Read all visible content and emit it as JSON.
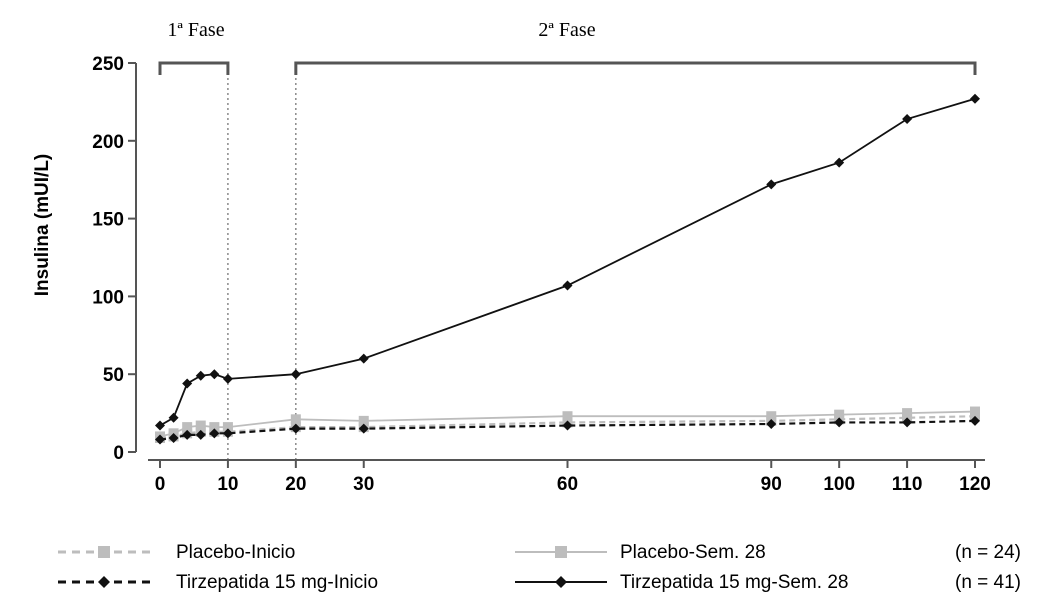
{
  "chart_data": {
    "type": "line",
    "xlabel": "",
    "ylabel": "Insulina (mUI/L)",
    "xlim": [
      0,
      120
    ],
    "ylim": [
      0,
      250
    ],
    "x_ticks": [
      0,
      10,
      20,
      30,
      60,
      90,
      100,
      110,
      120
    ],
    "y_ticks": [
      0,
      50,
      100,
      150,
      200,
      250
    ],
    "phases": [
      {
        "label": "1ª Fase",
        "x_start": 0,
        "x_end": 10
      },
      {
        "label": "2ª Fase",
        "x_start": 20,
        "x_end": 120
      }
    ],
    "series": [
      {
        "name": "Placebo-Inicio",
        "color": "#bdbdbd",
        "line_style": "dashed",
        "marker": "square",
        "x": [
          0,
          2,
          4,
          6,
          8,
          10,
          20,
          30,
          60,
          90,
          100,
          110,
          120
        ],
        "y": [
          9,
          10,
          12,
          13,
          13,
          13,
          16,
          16,
          19,
          20,
          21,
          22,
          23
        ]
      },
      {
        "name": "Placebo-Sem. 28",
        "color": "#bdbdbd",
        "line_style": "solid",
        "marker": "square",
        "x": [
          0,
          2,
          4,
          6,
          8,
          10,
          20,
          30,
          60,
          90,
          100,
          110,
          120
        ],
        "y": [
          10,
          12,
          16,
          17,
          16,
          16,
          21,
          20,
          23,
          23,
          24,
          25,
          26
        ]
      },
      {
        "name": "Tirzepatida 15 mg-Inicio",
        "color": "#111111",
        "line_style": "dashed",
        "marker": "diamond",
        "x": [
          0,
          2,
          4,
          6,
          8,
          10,
          20,
          30,
          60,
          90,
          100,
          110,
          120
        ],
        "y": [
          8,
          9,
          11,
          11,
          12,
          12,
          15,
          15,
          17,
          18,
          19,
          19,
          20
        ]
      },
      {
        "name": "Tirzepatida 15 mg-Sem. 28",
        "color": "#111111",
        "line_style": "solid",
        "marker": "diamond",
        "x": [
          0,
          2,
          4,
          6,
          8,
          10,
          20,
          30,
          60,
          90,
          100,
          110,
          120
        ],
        "y": [
          17,
          22,
          44,
          49,
          50,
          47,
          50,
          60,
          107,
          172,
          186,
          214,
          227
        ]
      }
    ],
    "legend": {
      "placement": "bottom",
      "n_labels": [
        "(n = 24)",
        "(n = 41)"
      ]
    }
  }
}
